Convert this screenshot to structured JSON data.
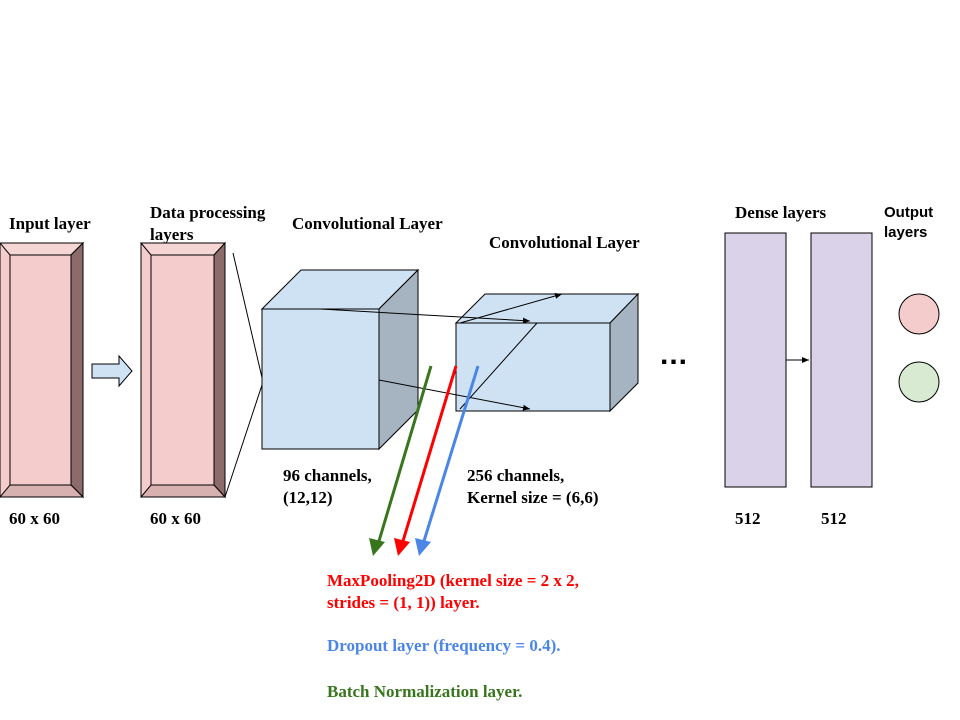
{
  "labels": {
    "input_layer": "Input layer",
    "data_processing_1": "Data processing",
    "data_processing_2": "layers",
    "conv1": "Convolutional Layer",
    "conv2": "Convolutional Layer",
    "dense": "Dense layers",
    "output_1": "Output",
    "output_2": "layers",
    "input_size": "60 x 60",
    "dp_size": "60 x 60",
    "conv1_ch_1": "96 channels,",
    "conv1_ch_2": "(12,12)",
    "conv2_ch_1": "256 channels,",
    "conv2_ch_2": "Kernel size = (6,6)",
    "dense1_units": "512",
    "dense2_units": "512",
    "ellipsis": "..."
  },
  "legend": {
    "maxpool_1": "MaxPooling2D (kernel size = 2 x 2,",
    "maxpool_2": "strides = (1, 1)) layer.",
    "dropout": "Dropout layer (frequency = 0.4).",
    "batchnorm": "Batch Normalization layer."
  },
  "colors": {
    "input_block_face": "#f4cccc",
    "input_block_side": "#8d6b6b",
    "cube_face": "#cfe2f3",
    "cube_side": "#a6b4c1",
    "dense_fill": "#d9d2e9",
    "output_pink": "#f4cccc",
    "output_green": "#d9ead3",
    "maxpool_color": "#ff0000",
    "dropout_color": "#4a86e8",
    "batchnorm_color": "#38761d"
  }
}
